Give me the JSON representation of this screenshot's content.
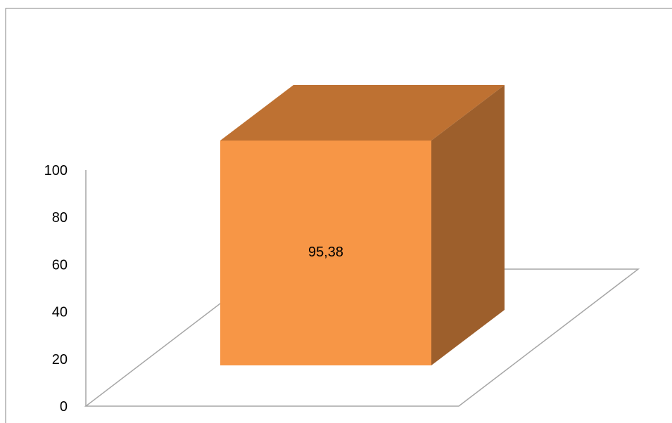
{
  "chart_data": {
    "type": "bar",
    "categories": [
      ""
    ],
    "series": [
      {
        "values": [
          95.38
        ]
      }
    ],
    "data_labels": [
      "95,38"
    ],
    "title": "",
    "xlabel": "",
    "ylabel": "",
    "ylim": [
      0,
      100
    ],
    "yticks": [
      0,
      20,
      40,
      60,
      80,
      100
    ],
    "ytick_labels": [
      "0",
      "20",
      "40",
      "60",
      "80",
      "100"
    ],
    "grid": false,
    "legend": "none",
    "style": "3d",
    "colors": {
      "bar_front": "#F79646",
      "bar_top": "#BE7132",
      "bar_side": "#9D5F2C",
      "floor_line": "#A6A6A6",
      "frame": "#868686"
    }
  }
}
